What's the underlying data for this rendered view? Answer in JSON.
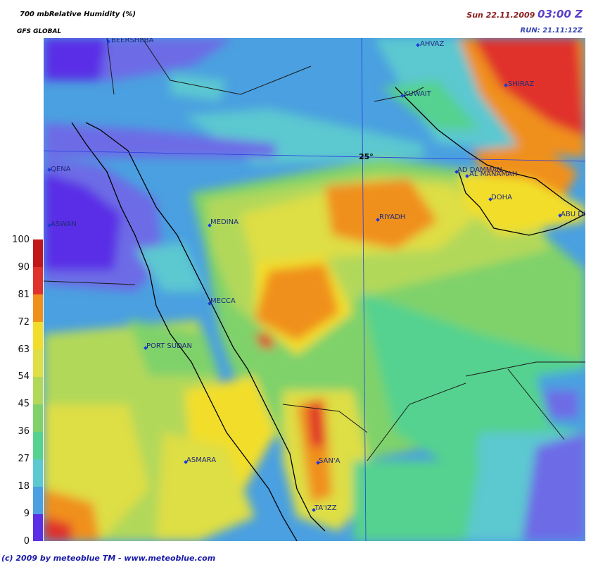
{
  "header": {
    "title": "700 mbRelative Humidity (%)",
    "model": "GFS GLOBAL",
    "date": "Sun 22.11.2009",
    "time": "03:00 Z",
    "run": "RUN: 21.11:12Z"
  },
  "footer": {
    "copyright": "(c) 2009 by meteoblue TM - www.meteoblue.com"
  },
  "legend": {
    "ticks": [
      "100",
      "90",
      "81",
      "72",
      "63",
      "54",
      "45",
      "36",
      "27",
      "18",
      "9",
      "0"
    ]
  },
  "map": {
    "lat_label": "25°",
    "cities": [
      {
        "name": "BEERSHEBA"
      },
      {
        "name": "AHVAZ"
      },
      {
        "name": "KUWAIT"
      },
      {
        "name": "SHIRAZ"
      },
      {
        "name": "QENA"
      },
      {
        "name": "AD DAMMAN"
      },
      {
        "name": "AL MANAMAH"
      },
      {
        "name": "DOHA"
      },
      {
        "name": "ASWAN"
      },
      {
        "name": "MEDINA"
      },
      {
        "name": "RIYADH"
      },
      {
        "name": "ABU DH"
      },
      {
        "name": "MECCA"
      },
      {
        "name": "PORT SUDAN"
      },
      {
        "name": "ASMARA"
      },
      {
        "name": "SAN'A"
      },
      {
        "name": "TA'IZZ"
      }
    ]
  },
  "colors": {
    "c0": "#5a2fe6",
    "c9": "#6d6ce6",
    "c18": "#4aa0e0",
    "c27": "#5cc8d0",
    "c36": "#55d28f",
    "c45": "#7fd26a",
    "c54": "#b2d85a",
    "c63": "#dede45",
    "c72": "#f2de2a",
    "c81": "#f0901c",
    "c90": "#e0322c",
    "c100": "#c01818"
  }
}
